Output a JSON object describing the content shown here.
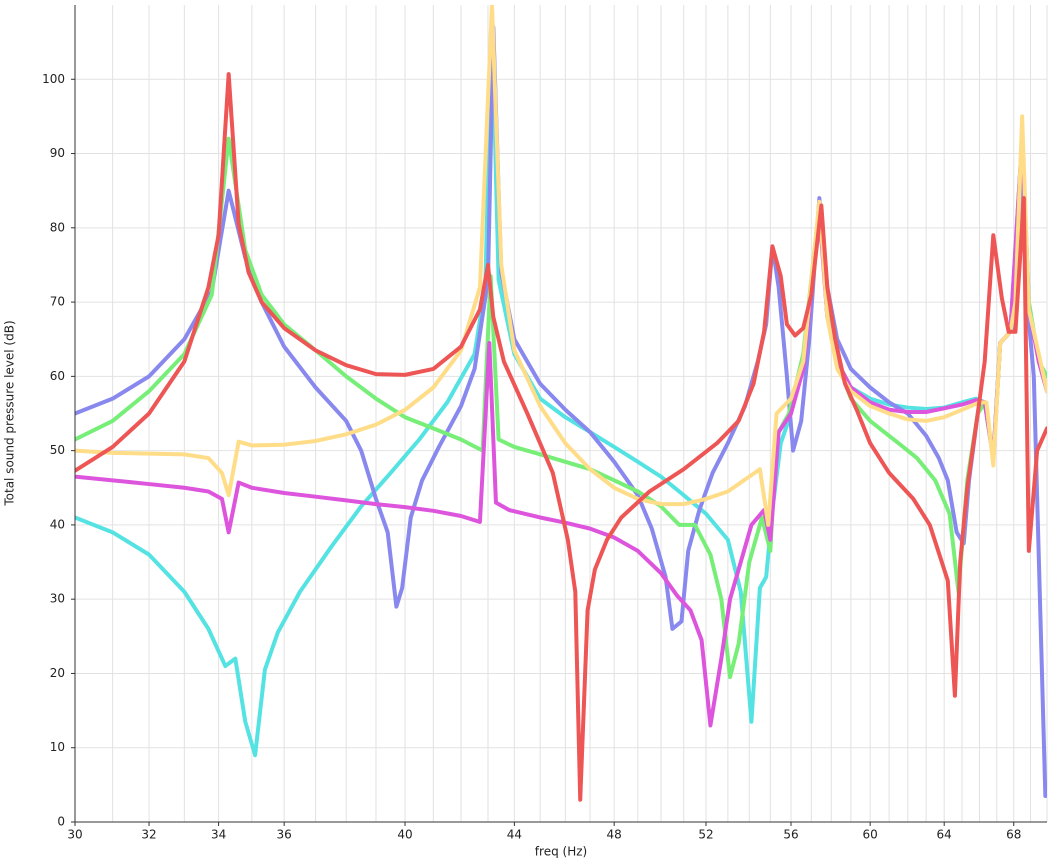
{
  "chart_data": {
    "type": "line",
    "x_label": "freq (Hz)",
    "y_label": "Total sound pressure level (dB)",
    "xscale": "log",
    "grid": true,
    "xlim": [
      30,
      70
    ],
    "xticks": [
      30,
      32,
      34,
      36,
      40,
      44,
      48,
      52,
      56,
      60,
      64,
      68
    ],
    "ylim": [
      0,
      110
    ],
    "yticks": [
      0,
      10,
      20,
      30,
      40,
      50,
      60,
      70,
      80,
      90,
      100
    ],
    "series": [
      {
        "color": "#55e2e2",
        "x": [
          30,
          31,
          32,
          33,
          33.7,
          34.2,
          34.5,
          34.8,
          35.1,
          35.4,
          35.8,
          36.5,
          37.5,
          38.5,
          39.5,
          40.5,
          41.5,
          42.5,
          42.9,
          43.15,
          43.4,
          44,
          45,
          46,
          47,
          48,
          49,
          50,
          51,
          52,
          53,
          53.6,
          54.1,
          54.5,
          54.8,
          55.1,
          55.5,
          56,
          56.6,
          57.4,
          57.8,
          58.3,
          59,
          60,
          61,
          62,
          63,
          64,
          65,
          65.8,
          66.3,
          66.8,
          67.2,
          67.8,
          68.5,
          68.9,
          69.5,
          70
        ],
        "values": [
          41,
          39,
          36,
          31,
          26,
          21,
          22,
          13.5,
          9,
          20.5,
          25.5,
          31,
          37,
          42.5,
          47,
          51.5,
          56.5,
          63,
          72,
          108,
          73,
          63,
          57,
          54.5,
          52.5,
          50.5,
          48.5,
          46.5,
          44,
          41.5,
          38,
          31,
          13.5,
          31.5,
          33,
          42,
          51,
          55,
          62,
          83,
          68,
          62,
          58.5,
          57,
          56.2,
          55.8,
          55.6,
          55.8,
          56.5,
          57,
          56.5,
          49,
          64.5,
          66,
          92,
          70,
          62,
          58
        ]
      },
      {
        "color": "#8888ee",
        "x": [
          30,
          31,
          32,
          33,
          33.8,
          34.3,
          34.8,
          35.3,
          36,
          37,
          38,
          38.5,
          39,
          39.4,
          39.7,
          39.9,
          40.2,
          40.6,
          41.2,
          42,
          42.5,
          43,
          43.2,
          43.5,
          44,
          45,
          46,
          47,
          48,
          49,
          49.6,
          50.2,
          50.5,
          50.9,
          51.2,
          51.7,
          52.3,
          53,
          53.8,
          54.4,
          54.8,
          55.1,
          55.4,
          55.8,
          56.1,
          56.5,
          56.9,
          57.4,
          57.8,
          58.3,
          59,
          60,
          61,
          62,
          63,
          63.7,
          64.2,
          64.7,
          65.1,
          65.4,
          65.9,
          66.3,
          66.8,
          67.2,
          67.8,
          68.1,
          68.5,
          68.8,
          69.2,
          69.9
        ],
        "values": [
          55,
          57,
          60,
          65,
          71.5,
          85,
          76,
          70,
          64,
          58.5,
          54,
          50,
          43.5,
          39,
          29,
          31.5,
          41,
          46,
          50.5,
          56,
          61,
          73,
          107,
          74,
          65,
          59,
          55.5,
          52.5,
          48.5,
          44,
          39.5,
          33,
          26,
          27,
          36.5,
          42,
          47,
          51,
          56,
          62,
          67,
          77.5,
          72,
          60,
          50,
          54,
          65,
          84,
          72,
          65,
          61,
          58.5,
          56.5,
          55,
          52,
          49,
          46,
          39,
          37.5,
          46,
          55,
          56.5,
          49,
          64.5,
          66,
          67,
          92,
          70,
          60,
          3.5
        ]
      },
      {
        "color": "#77ee77",
        "x": [
          30,
          31,
          32,
          33,
          33.8,
          34.3,
          34.8,
          35.3,
          36,
          37,
          38,
          39,
          40,
          41,
          42,
          42.8,
          43.1,
          43.4,
          44,
          45,
          46,
          47,
          48,
          49,
          50,
          50.8,
          51.5,
          52.2,
          52.7,
          53.1,
          53.5,
          54,
          54.6,
          55,
          55.3,
          55.9,
          56.6,
          57.4,
          57.8,
          58.3,
          59,
          60,
          61.5,
          62.5,
          63.5,
          64.3,
          64.8,
          65.3,
          65.9,
          66.3,
          66.8,
          67.2,
          67.8,
          68.5,
          68.9,
          69.5,
          70
        ],
        "values": [
          51.5,
          54,
          58,
          63,
          71,
          92,
          77,
          71,
          67,
          63.5,
          60,
          57,
          54.5,
          53,
          51.5,
          50,
          73.5,
          51.5,
          50.5,
          49.5,
          48.5,
          47.5,
          46,
          44.5,
          42.5,
          40,
          40,
          36,
          30,
          19.5,
          24,
          35,
          41,
          36.5,
          52,
          55,
          63,
          83,
          69,
          62,
          57,
          54,
          51,
          49,
          46,
          41.5,
          31,
          46,
          55,
          56.5,
          49,
          64.5,
          66,
          92,
          70,
          62,
          60
        ]
      },
      {
        "color": "#dd55dd",
        "x": [
          30,
          31,
          32,
          33,
          33.7,
          34.1,
          34.3,
          34.6,
          35,
          36,
          37,
          38,
          39,
          40,
          41,
          42,
          42.7,
          43.05,
          43.3,
          43.8,
          45,
          46,
          47,
          48,
          49,
          50,
          50.7,
          51.3,
          51.8,
          52.2,
          52.7,
          53.1,
          53.6,
          54.1,
          54.7,
          55,
          55.4,
          56,
          56.6,
          57.4,
          57.8,
          58.3,
          59,
          60,
          61,
          62,
          63,
          64,
          65,
          65.8,
          66.3,
          66.8,
          67.2,
          67.8,
          68.5,
          68.9,
          69.5,
          70
        ],
        "values": [
          46.5,
          46,
          45.5,
          45,
          44.5,
          43.5,
          39,
          45.7,
          45,
          44.3,
          43.8,
          43.3,
          42.8,
          42.4,
          41.9,
          41.2,
          40.4,
          64.5,
          43,
          42,
          41,
          40.3,
          39.5,
          38.3,
          36.5,
          33.5,
          30.5,
          28.5,
          24.5,
          13,
          22,
          30,
          35,
          40,
          42,
          38,
          52.5,
          55,
          61,
          82,
          68,
          62,
          58.5,
          56.5,
          55.5,
          55.2,
          55.2,
          55.7,
          56.2,
          56.8,
          56.5,
          49,
          64.5,
          66,
          92,
          69,
          62,
          58
        ]
      },
      {
        "color": "#ffdd88",
        "x": [
          30,
          31,
          32,
          33,
          33.7,
          34.1,
          34.3,
          34.6,
          35,
          36,
          37,
          38,
          39,
          40,
          41,
          42,
          42.7,
          43.15,
          43.5,
          44,
          45,
          46,
          47,
          48,
          49,
          50,
          51,
          52,
          53,
          54,
          54.5,
          54.9,
          55.3,
          56,
          56.6,
          57.4,
          57.8,
          58.3,
          59,
          60,
          61,
          62,
          63,
          64,
          65,
          66,
          66.4,
          66.8,
          67.2,
          67.8,
          68.1,
          68.5,
          68.9,
          69.5,
          70
        ],
        "values": [
          50,
          49.7,
          49.6,
          49.5,
          49,
          47,
          44,
          51.2,
          50.7,
          50.8,
          51.3,
          52.2,
          53.5,
          55.5,
          58.5,
          63.5,
          72,
          110,
          75,
          63.5,
          56,
          51,
          47.5,
          45,
          43.5,
          42.8,
          42.8,
          43.5,
          44.5,
          46.5,
          47.5,
          40,
          55,
          57,
          62,
          83.5,
          68,
          61,
          58,
          56,
          55,
          54.2,
          54,
          54.5,
          55.5,
          56.5,
          56.5,
          48,
          64.5,
          66,
          70,
          95,
          69,
          63,
          58
        ]
      },
      {
        "color": "#ee5555",
        "x": [
          30,
          31,
          32,
          33,
          33.7,
          34,
          34.3,
          34.6,
          34.9,
          35.3,
          36,
          37,
          38,
          39,
          40,
          41,
          42,
          42.7,
          43,
          43.2,
          43.6,
          44.5,
          45.5,
          46.1,
          46.4,
          46.6,
          46.9,
          47.2,
          47.7,
          48.3,
          49.5,
          51,
          52.5,
          53.5,
          54.2,
          54.7,
          55.1,
          55.5,
          55.8,
          56.2,
          56.6,
          57,
          57.5,
          57.8,
          58.2,
          58.7,
          59.3,
          60,
          61,
          62.3,
          63.2,
          63.8,
          64.2,
          64.6,
          64.9,
          65.3,
          65.9,
          66.3,
          66.8,
          67.3,
          67.7,
          68.1,
          68.6,
          68.9,
          69.4,
          70
        ],
        "values": [
          47.3,
          50.5,
          55,
          62,
          72,
          79,
          100.7,
          80.5,
          74,
          70,
          66.5,
          63.5,
          61.5,
          60.3,
          60.2,
          61,
          64,
          69,
          75,
          68,
          62,
          55,
          47,
          38,
          31,
          3,
          28.5,
          34,
          38,
          41,
          44.5,
          47.5,
          51,
          54,
          59,
          66,
          77.5,
          73.5,
          67,
          65.5,
          66.5,
          71,
          83,
          72,
          65,
          59,
          55.5,
          51,
          47,
          43.5,
          40,
          35.5,
          32.5,
          17,
          35,
          45,
          55,
          62,
          79,
          70.5,
          66,
          66,
          84,
          36.5,
          50,
          53
        ]
      }
    ]
  }
}
